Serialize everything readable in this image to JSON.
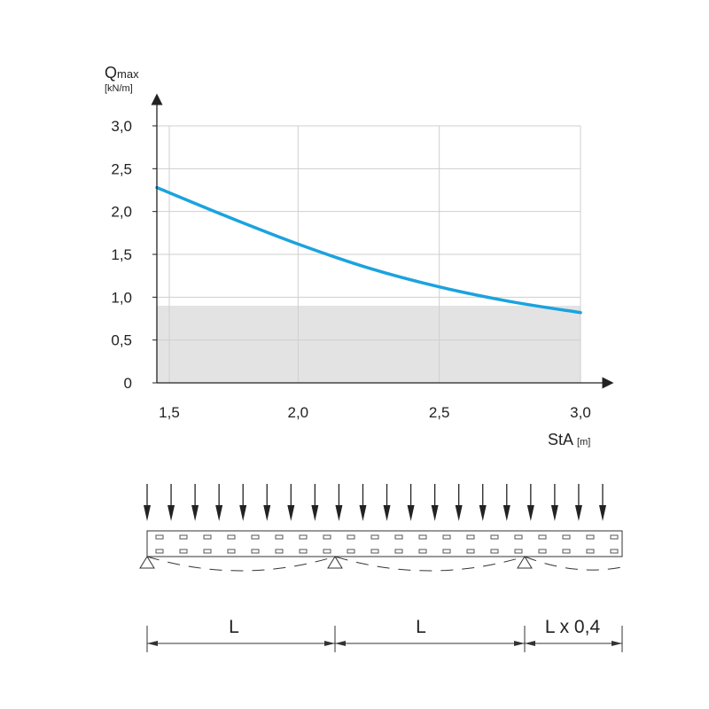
{
  "chart_data": {
    "type": "line",
    "ylabel": "Qmax",
    "ylabel_main": "Q",
    "ylabel_sub": "max",
    "yunit": "[kN/m]",
    "xlabel": "StA",
    "xunit": "[m]",
    "xlim": [
      1.5,
      3.0
    ],
    "ylim": [
      0,
      3.0
    ],
    "x_ticks": [
      "1,5",
      "2,0",
      "2,5",
      "3,0"
    ],
    "x_tick_values": [
      1.5,
      2.0,
      2.5,
      3.0
    ],
    "y_ticks": [
      "0",
      "0,5",
      "1,0",
      "1,5",
      "2,0",
      "2,5",
      "3,0"
    ],
    "y_tick_values": [
      0,
      0.5,
      1.0,
      1.5,
      2.0,
      2.5,
      3.0
    ],
    "grid": true,
    "shaded_band": [
      0,
      0.9
    ],
    "series": [
      {
        "color": "#1aa3de",
        "x": [
          1.5,
          1.75,
          2.0,
          2.25,
          2.5,
          2.75,
          3.0
        ],
        "y": [
          2.28,
          1.94,
          1.62,
          1.34,
          1.12,
          0.95,
          0.82
        ]
      }
    ],
    "colors": {
      "curve": "#1aa3de",
      "band": "#e3e3e4",
      "grid": "#cfcfcf",
      "axis": "#222222"
    }
  },
  "diagram": {
    "load_arrow_count": 20,
    "span_labels": [
      "L",
      "L",
      "L x 0,4"
    ]
  }
}
